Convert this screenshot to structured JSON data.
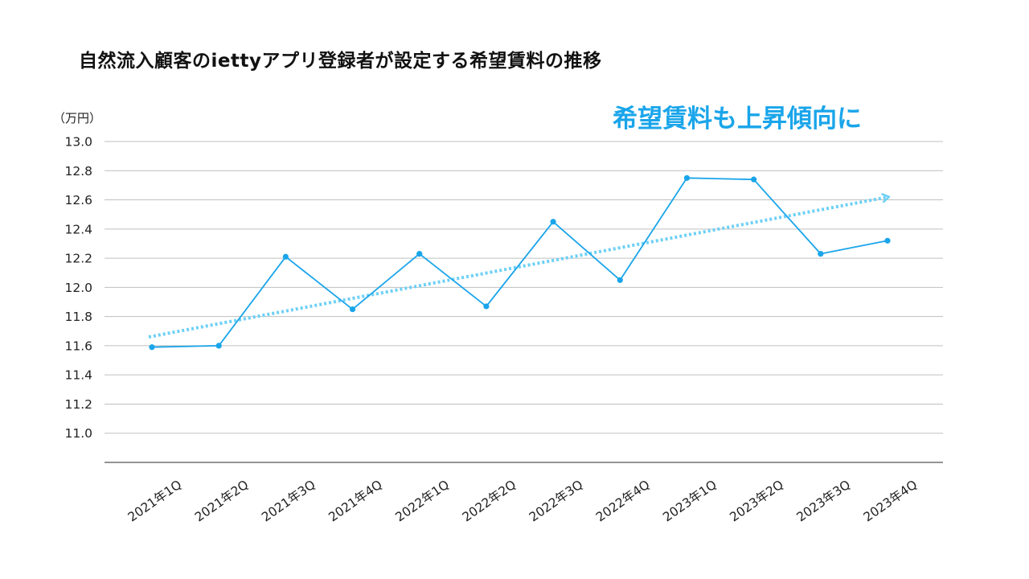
{
  "title": "自然流入顧客のiettyアプリ登録者が設定する希望賃料の推移",
  "annotation": "希望賃料も上昇傾向に",
  "colors": {
    "series": "#1aa5ea",
    "trend": "#6dd0f5",
    "grid": "#bfbfbf",
    "axis": "#555555"
  },
  "chart_data": {
    "type": "line",
    "unit_label": "（万円）",
    "categories": [
      "2021年1Q",
      "2021年2Q",
      "2021年3Q",
      "2021年4Q",
      "2022年1Q",
      "2022年2Q",
      "2022年3Q",
      "2022年4Q",
      "2023年1Q",
      "2023年2Q",
      "2023年3Q",
      "2023年4Q"
    ],
    "series": [
      {
        "values": [
          11.59,
          11.6,
          12.21,
          11.85,
          12.23,
          11.87,
          12.45,
          12.05,
          12.75,
          12.74,
          12.23,
          12.32
        ]
      }
    ],
    "trendline": {
      "start": 11.66,
      "end": 12.62,
      "style": "dotted-arrow"
    },
    "yticks": [
      "11.0",
      "11.2",
      "11.4",
      "11.6",
      "11.8",
      "12.0",
      "12.2",
      "12.4",
      "12.6",
      "12.8",
      "13.0"
    ],
    "ylim": [
      10.8,
      13.0
    ],
    "grid": true
  }
}
